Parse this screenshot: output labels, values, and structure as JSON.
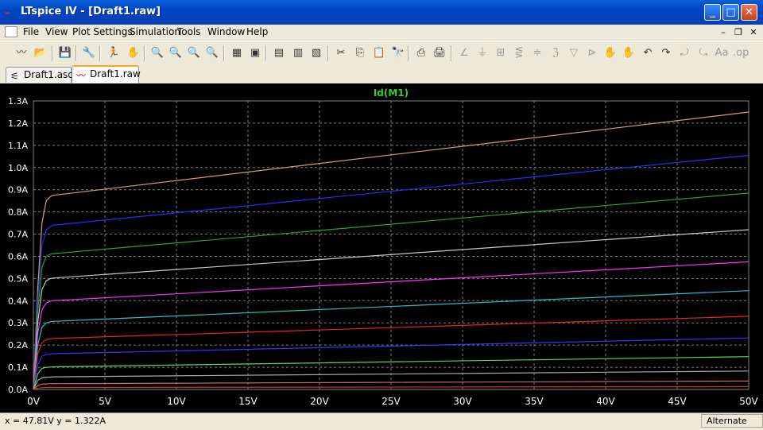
{
  "window": {
    "title": "LTspice IV - [Draft1.raw]",
    "minimize": "_",
    "maximize": "□",
    "close": "✕"
  },
  "menu": [
    "File",
    "View",
    "Plot Settings",
    "Simulation",
    "Tools",
    "Window",
    "Help"
  ],
  "mdi": {
    "minimize": "–",
    "restore": "❐",
    "close": "✕"
  },
  "tabs": [
    {
      "label": "Draft1.asc",
      "icon": "schematic-icon",
      "active": false
    },
    {
      "label": "Draft1.raw",
      "icon": "waveform-icon",
      "active": true
    }
  ],
  "toolbar": [
    {
      "icon": "waveform-icon",
      "glyph": "〰"
    },
    {
      "icon": "open-icon",
      "glyph": "📂"
    },
    {
      "icon": "save-icon",
      "glyph": "💾"
    },
    {
      "icon": "control-panel-icon",
      "glyph": "🔧"
    },
    {
      "icon": "run-icon",
      "glyph": "🏃"
    },
    {
      "icon": "pan-icon",
      "glyph": "✋"
    },
    {
      "icon": "zoom-in-icon",
      "glyph": "🔍"
    },
    {
      "icon": "zoom-full-icon",
      "glyph": "🔍"
    },
    {
      "icon": "zoom-out-icon",
      "glyph": "🔍"
    },
    {
      "icon": "zoom-cancel-icon",
      "glyph": "🔍"
    },
    {
      "icon": "autorange-icon",
      "glyph": "▦"
    },
    {
      "icon": "plot-settings-icon",
      "glyph": "▣"
    },
    {
      "icon": "tile-horizontal-icon",
      "glyph": "▤"
    },
    {
      "icon": "cascade-icon",
      "glyph": "▥"
    },
    {
      "icon": "tile-vertical-icon",
      "glyph": "▧"
    },
    {
      "icon": "cut-icon",
      "glyph": "✂"
    },
    {
      "icon": "copy-icon",
      "glyph": "⎘"
    },
    {
      "icon": "paste-icon",
      "glyph": "📋"
    },
    {
      "icon": "find-icon",
      "glyph": "🔭"
    },
    {
      "icon": "print-preview-icon",
      "glyph": "⎙"
    },
    {
      "icon": "print-icon",
      "glyph": "🖨"
    },
    {
      "icon": "wire-icon",
      "glyph": "∠"
    },
    {
      "icon": "ground-icon",
      "glyph": "⏚"
    },
    {
      "icon": "label-icon",
      "glyph": "⊞"
    },
    {
      "icon": "resistor-icon",
      "glyph": "⋚"
    },
    {
      "icon": "capacitor-icon",
      "glyph": "≑"
    },
    {
      "icon": "inductor-icon",
      "glyph": "ℨ"
    },
    {
      "icon": "diode-icon",
      "glyph": "▽"
    },
    {
      "icon": "component-icon",
      "glyph": "⊳"
    },
    {
      "icon": "move-icon",
      "glyph": "✋"
    },
    {
      "icon": "drag-icon",
      "glyph": "✋"
    },
    {
      "icon": "undo-icon",
      "glyph": "↶"
    },
    {
      "icon": "redo-icon",
      "glyph": "↷"
    },
    {
      "icon": "rotate-icon",
      "glyph": "⤾"
    },
    {
      "icon": "mirror-icon",
      "glyph": "⤿"
    },
    {
      "icon": "text-icon",
      "glyph": "Aa"
    },
    {
      "icon": "spice-directive-icon",
      "glyph": ".op"
    }
  ],
  "plot": {
    "background": "#000000",
    "grid_color": "#808080",
    "axis_text_color": "#ffffff"
  },
  "chart_data": {
    "type": "line",
    "title": "Id(M1)",
    "title_color": "#33cc33",
    "xlabel": "",
    "ylabel": "",
    "xlim": [
      0,
      50
    ],
    "ylim": [
      0,
      1.3
    ],
    "x_ticks": [
      "0V",
      "5V",
      "10V",
      "15V",
      "20V",
      "25V",
      "30V",
      "35V",
      "40V",
      "45V",
      "50V"
    ],
    "y_ticks": [
      "0.0A",
      "0.1A",
      "0.2A",
      "0.3A",
      "0.4A",
      "0.5A",
      "0.6A",
      "0.7A",
      "0.8A",
      "0.9A",
      "1.0A",
      "1.1A",
      "1.2A",
      "1.3A"
    ],
    "grid": true,
    "series": [
      {
        "color": "#d9a066",
        "x": [
          0,
          0.3,
          0.6,
          0.9,
          1.2,
          1.4,
          50
        ],
        "y": [
          0,
          0.45,
          0.75,
          0.85,
          0.87,
          0.875,
          1.25
        ]
      },
      {
        "color": "#1a33ff",
        "x": [
          0,
          0.3,
          0.6,
          0.9,
          1.2,
          1.4,
          50
        ],
        "y": [
          0,
          0.4,
          0.65,
          0.72,
          0.735,
          0.74,
          1.055
        ]
      },
      {
        "color": "#22aa22",
        "x": [
          0,
          0.3,
          0.6,
          0.9,
          1.2,
          1.4,
          50
        ],
        "y": [
          0,
          0.35,
          0.55,
          0.6,
          0.61,
          0.612,
          0.885
        ]
      },
      {
        "color": "#c8c8c8",
        "x": [
          0,
          0.3,
          0.6,
          0.9,
          1.2,
          1.4,
          50
        ],
        "y": [
          0,
          0.3,
          0.45,
          0.49,
          0.5,
          0.502,
          0.72
        ]
      },
      {
        "color": "#ff33ff",
        "x": [
          0,
          0.3,
          0.6,
          0.9,
          1.2,
          1.4,
          50
        ],
        "y": [
          0,
          0.25,
          0.36,
          0.39,
          0.398,
          0.4,
          0.575
        ]
      },
      {
        "color": "#33bbcc",
        "x": [
          0,
          0.3,
          0.6,
          0.9,
          1.2,
          1.4,
          50
        ],
        "y": [
          0,
          0.2,
          0.28,
          0.3,
          0.305,
          0.307,
          0.445
        ]
      },
      {
        "color": "#ee2222",
        "x": [
          0,
          0.3,
          0.6,
          0.9,
          1.2,
          1.4,
          50
        ],
        "y": [
          0,
          0.16,
          0.21,
          0.225,
          0.228,
          0.23,
          0.33
        ]
      },
      {
        "color": "#3333ff",
        "x": [
          0,
          0.3,
          0.6,
          0.9,
          1.2,
          1.4,
          50
        ],
        "y": [
          0,
          0.11,
          0.15,
          0.158,
          0.16,
          0.161,
          0.232
        ]
      },
      {
        "color": "#55dd55",
        "x": [
          0,
          0.3,
          0.6,
          0.9,
          1.2,
          1.4,
          50
        ],
        "y": [
          0,
          0.07,
          0.095,
          0.1,
          0.101,
          0.102,
          0.148
        ]
      },
      {
        "color": "#aaaaaa",
        "x": [
          0,
          0.3,
          0.6,
          0.9,
          1.2,
          1.4,
          50
        ],
        "y": [
          0,
          0.04,
          0.052,
          0.055,
          0.056,
          0.057,
          0.083
        ]
      },
      {
        "color": "#cc6666",
        "x": [
          0,
          0.3,
          0.6,
          0.9,
          1.2,
          1.4,
          50
        ],
        "y": [
          0,
          0.018,
          0.024,
          0.025,
          0.026,
          0.026,
          0.038
        ]
      },
      {
        "color": "#cc3333",
        "x": [
          0,
          0.3,
          0.6,
          0.9,
          1.2,
          1.4,
          50
        ],
        "y": [
          0,
          0.006,
          0.008,
          0.009,
          0.009,
          0.009,
          0.013
        ]
      }
    ]
  },
  "status": {
    "cursor": "x = 47.81V    y = 1.322A",
    "mode": "Alternate"
  }
}
